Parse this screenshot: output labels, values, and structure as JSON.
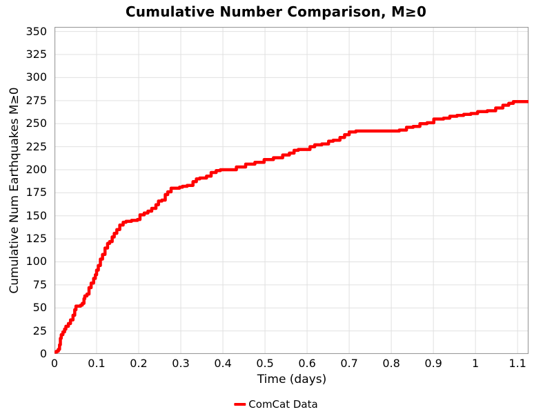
{
  "title": "Cumulative Number Comparison, M≥0",
  "colors": {
    "line": "#ff0000",
    "grid": "#e0e0e0",
    "border": "#999999",
    "text": "#000000",
    "background": "#ffffff"
  },
  "legend": {
    "label": "ComCat Data"
  },
  "chart_data": {
    "type": "line",
    "title": "Cumulative Number Comparison, M≥0",
    "xlabel": "Time (days)",
    "ylabel": "Cumulative Num Earthquakes M≥0",
    "xlim": [
      0,
      1.126
    ],
    "ylim": [
      0,
      355
    ],
    "x_ticks": [
      0,
      0.1,
      0.2,
      0.3,
      0.4,
      0.5,
      0.6,
      0.7,
      0.8,
      0.9,
      1,
      1.1
    ],
    "x_tick_labels": [
      "0",
      "0.1",
      "0.2",
      "0.3",
      "0.4",
      "0.5",
      "0.6",
      "0.7",
      "0.8",
      "0.9",
      "1",
      "1.1"
    ],
    "y_ticks": [
      0,
      25,
      50,
      75,
      100,
      125,
      150,
      175,
      200,
      225,
      250,
      275,
      300,
      325,
      350
    ],
    "grid": true,
    "legend_position": "bottom-center",
    "series": [
      {
        "name": "ComCat Data",
        "color": "#ff0000",
        "line_width": 4.5,
        "interpolation": "step-after",
        "points": [
          [
            0,
            2
          ],
          [
            0.005,
            3
          ],
          [
            0.009,
            5
          ],
          [
            0.012,
            10
          ],
          [
            0.014,
            17
          ],
          [
            0.016,
            21
          ],
          [
            0.02,
            24
          ],
          [
            0.024,
            27
          ],
          [
            0.027,
            30
          ],
          [
            0.033,
            33
          ],
          [
            0.038,
            37
          ],
          [
            0.044,
            42
          ],
          [
            0.048,
            48
          ],
          [
            0.051,
            52
          ],
          [
            0.062,
            53
          ],
          [
            0.066,
            55
          ],
          [
            0.07,
            60
          ],
          [
            0.072,
            63
          ],
          [
            0.077,
            65
          ],
          [
            0.082,
            72
          ],
          [
            0.087,
            77
          ],
          [
            0.093,
            82
          ],
          [
            0.097,
            86
          ],
          [
            0.1,
            91
          ],
          [
            0.104,
            96
          ],
          [
            0.109,
            103
          ],
          [
            0.114,
            108
          ],
          [
            0.12,
            115
          ],
          [
            0.126,
            120
          ],
          [
            0.131,
            122
          ],
          [
            0.137,
            127
          ],
          [
            0.142,
            131
          ],
          [
            0.148,
            135
          ],
          [
            0.155,
            140
          ],
          [
            0.163,
            143
          ],
          [
            0.17,
            144
          ],
          [
            0.183,
            145
          ],
          [
            0.197,
            146
          ],
          [
            0.203,
            151
          ],
          [
            0.213,
            153
          ],
          [
            0.222,
            155
          ],
          [
            0.231,
            158
          ],
          [
            0.241,
            162
          ],
          [
            0.247,
            166
          ],
          [
            0.255,
            167
          ],
          [
            0.263,
            173
          ],
          [
            0.269,
            176
          ],
          [
            0.277,
            180
          ],
          [
            0.297,
            181
          ],
          [
            0.304,
            182
          ],
          [
            0.315,
            183
          ],
          [
            0.329,
            187
          ],
          [
            0.337,
            190
          ],
          [
            0.345,
            191
          ],
          [
            0.361,
            193
          ],
          [
            0.372,
            197
          ],
          [
            0.384,
            199
          ],
          [
            0.394,
            200
          ],
          [
            0.419,
            200
          ],
          [
            0.432,
            203
          ],
          [
            0.454,
            206
          ],
          [
            0.476,
            208
          ],
          [
            0.498,
            211
          ],
          [
            0.52,
            213
          ],
          [
            0.542,
            216
          ],
          [
            0.558,
            218
          ],
          [
            0.569,
            221
          ],
          [
            0.579,
            222
          ],
          [
            0.596,
            222
          ],
          [
            0.607,
            225
          ],
          [
            0.618,
            227
          ],
          [
            0.635,
            228
          ],
          [
            0.651,
            231
          ],
          [
            0.662,
            232
          ],
          [
            0.678,
            235
          ],
          [
            0.689,
            238
          ],
          [
            0.7,
            241
          ],
          [
            0.716,
            242
          ],
          [
            0.803,
            242
          ],
          [
            0.819,
            243
          ],
          [
            0.836,
            246
          ],
          [
            0.852,
            247
          ],
          [
            0.868,
            250
          ],
          [
            0.885,
            251
          ],
          [
            0.901,
            255
          ],
          [
            0.924,
            256
          ],
          [
            0.939,
            258
          ],
          [
            0.956,
            259
          ],
          [
            0.972,
            260
          ],
          [
            0.989,
            261
          ],
          [
            1.005,
            263
          ],
          [
            1.028,
            264
          ],
          [
            1.048,
            267
          ],
          [
            1.065,
            270
          ],
          [
            1.079,
            272
          ],
          [
            1.09,
            274
          ],
          [
            1.097,
            274
          ],
          [
            1.126,
            274
          ]
        ]
      }
    ]
  }
}
